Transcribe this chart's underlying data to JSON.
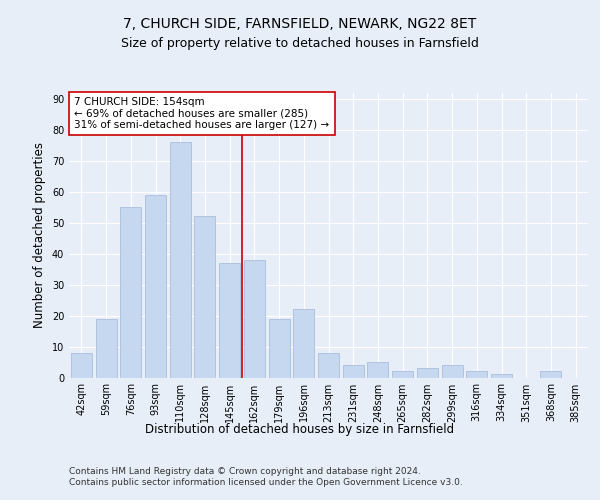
{
  "title1": "7, CHURCH SIDE, FARNSFIELD, NEWARK, NG22 8ET",
  "title2": "Size of property relative to detached houses in Farnsfield",
  "xlabel": "Distribution of detached houses by size in Farnsfield",
  "ylabel": "Number of detached properties",
  "categories": [
    "42sqm",
    "59sqm",
    "76sqm",
    "93sqm",
    "110sqm",
    "128sqm",
    "145sqm",
    "162sqm",
    "179sqm",
    "196sqm",
    "213sqm",
    "231sqm",
    "248sqm",
    "265sqm",
    "282sqm",
    "299sqm",
    "316sqm",
    "334sqm",
    "351sqm",
    "368sqm",
    "385sqm"
  ],
  "values": [
    8,
    19,
    55,
    59,
    76,
    52,
    37,
    38,
    19,
    22,
    8,
    4,
    5,
    2,
    3,
    4,
    2,
    1,
    0,
    2,
    0
  ],
  "bar_color": "#c5d8f0",
  "bar_edge_color": "#a0b8d8",
  "vline_index": 7,
  "vline_color": "#cc0000",
  "annotation_box_text": "7 CHURCH SIDE: 154sqm\n← 69% of detached houses are smaller (285)\n31% of semi-detached houses are larger (127) →",
  "ylim": [
    0,
    92
  ],
  "yticks": [
    0,
    10,
    20,
    30,
    40,
    50,
    60,
    70,
    80,
    90
  ],
  "footer": "Contains HM Land Registry data © Crown copyright and database right 2024.\nContains public sector information licensed under the Open Government Licence v3.0.",
  "bg_color": "#e8eef8",
  "plot_bg_color": "#e8eef8",
  "grid_color": "#ffffff",
  "title_fontsize": 10,
  "subtitle_fontsize": 9,
  "axis_label_fontsize": 8.5,
  "tick_fontsize": 7,
  "footer_fontsize": 6.5,
  "annotation_fontsize": 7.5
}
